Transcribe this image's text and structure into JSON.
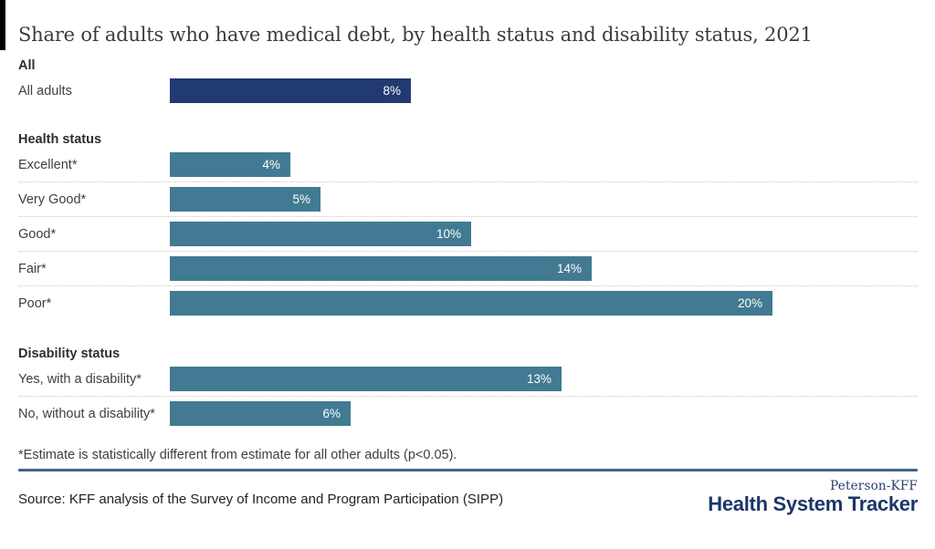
{
  "title": "Share of adults who have medical debt, by health status and disability status, 2021",
  "chart_data": {
    "type": "bar",
    "orientation": "horizontal",
    "unit": "percent",
    "xlim": [
      0,
      20
    ],
    "value_labels": "inside-right",
    "grid": "dotted row separators",
    "colors": {
      "all_adults": "#223a72",
      "default": "#417a92"
    },
    "groups": [
      {
        "label": "All",
        "rows": [
          {
            "label": "All adults",
            "value": 8,
            "display": "8%",
            "color": "#223a72"
          }
        ]
      },
      {
        "label": "Health status",
        "rows": [
          {
            "label": "Excellent*",
            "value": 4,
            "display": "4%"
          },
          {
            "label": "Very Good*",
            "value": 5,
            "display": "5%"
          },
          {
            "label": "Good*",
            "value": 10,
            "display": "10%"
          },
          {
            "label": "Fair*",
            "value": 14,
            "display": "14%"
          },
          {
            "label": "Poor*",
            "value": 20,
            "display": "20%"
          }
        ]
      },
      {
        "label": "Disability status",
        "rows": [
          {
            "label": "Yes, with a disability*",
            "value": 13,
            "display": "13%"
          },
          {
            "label": "No, without a disability*",
            "value": 6,
            "display": "6%"
          }
        ]
      }
    ]
  },
  "footnote": "*Estimate is statistically different from estimate for all other adults (p<0.05).",
  "source": "Source: KFF analysis of the Survey of Income and Program Participation (SIPP)",
  "logo": {
    "top": "Peterson-KFF",
    "bottom": "Health System Tracker"
  }
}
